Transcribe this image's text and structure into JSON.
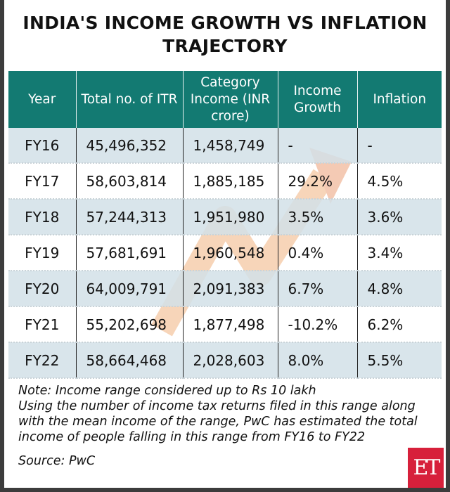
{
  "title": "INDIA'S INCOME GROWTH VS INFLATION TRAJECTORY",
  "table": {
    "headers": [
      "Year",
      "Total no. of ITR",
      "Category Income (INR crore)",
      "Income Growth",
      "Inflation"
    ],
    "rows": [
      [
        "FY16",
        "45,496,352",
        "1,458,749",
        "-",
        "-"
      ],
      [
        "FY17",
        "58,603,814",
        "1,885,185",
        "29.2%",
        "4.5%"
      ],
      [
        "FY18",
        "57,244,313",
        "1,951,980",
        "3.5%",
        "3.6%"
      ],
      [
        "FY19",
        "57,681,691",
        "1,960,548",
        "0.4%",
        "3.4%"
      ],
      [
        "FY20",
        "64,009,791",
        "2,091,383",
        "6.7%",
        "4.8%"
      ],
      [
        "FY21",
        "55,202,698",
        "1,877,498",
        "-10.2%",
        "6.2%"
      ],
      [
        "FY22",
        "58,664,468",
        "2,028,603",
        "8.0%",
        "5.5%"
      ]
    ]
  },
  "notes": [
    "Note: Income range considered up to Rs 10 lakh",
    "Using the number of income tax returns filed in this range along with the mean income of the range, PwC has estimated the total income of people falling in this range from FY16 to FY22"
  ],
  "source": "Source: PwC",
  "logo": "ET",
  "colors": {
    "header": "#137a72",
    "alt_row": "#d2e0e8",
    "logo": "#d7203b"
  }
}
